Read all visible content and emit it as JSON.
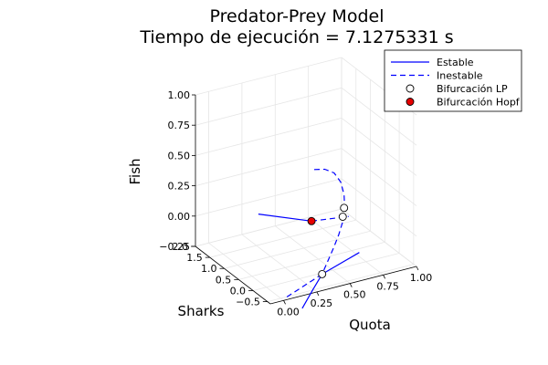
{
  "chart_data": {
    "type": "line3d",
    "title_lines": [
      "Predator-Prey Model",
      "Tiempo de ejecución = 7.1275331 s"
    ],
    "xlabel": "Quota",
    "ylabel": "Sharks",
    "zlabel": "Fish",
    "xlim": [
      -0.1,
      1.0
    ],
    "ylim": [
      -0.6,
      2.0
    ],
    "zlim": [
      -0.25,
      1.0
    ],
    "xticks": [
      "0.00",
      "0.25",
      "0.50",
      "0.75",
      "1.00"
    ],
    "xtick_values": [
      0.0,
      0.25,
      0.5,
      0.75,
      1.0
    ],
    "yticks": [
      "−0.5",
      "0.0",
      "0.5",
      "1.0",
      "1.5",
      "2.0"
    ],
    "ytick_values": [
      -0.5,
      0.0,
      0.5,
      1.0,
      1.5,
      2.0
    ],
    "zticks": [
      "−0.25",
      "0.00",
      "0.25",
      "0.50",
      "0.75",
      "1.00"
    ],
    "ztick_values": [
      -0.25,
      0.0,
      0.25,
      0.5,
      0.75,
      1.0
    ],
    "grid": true,
    "legend_position": "top-right",
    "legend": [
      {
        "label": "Estable",
        "kind": "line",
        "dash": false,
        "color": "#0000ff"
      },
      {
        "label": "Inestable",
        "kind": "line",
        "dash": true,
        "color": "#0000ff"
      },
      {
        "label": "Bifurcación LP",
        "kind": "marker",
        "color": "#ffffff"
      },
      {
        "label": "Bifurcación Hopf",
        "kind": "marker",
        "color": "#e60000"
      }
    ],
    "series": [
      {
        "name": "Estable",
        "dash": false,
        "color": "#0000ff",
        "points": [
          [
            -0.06,
            0.0,
            0.37
          ],
          [
            0.34,
            0.0,
            0.2
          ]
        ]
      },
      {
        "name": "Inestable",
        "dash": true,
        "color": "#0000ff",
        "points": [
          [
            0.34,
            0.0,
            0.2
          ],
          [
            0.62,
            0.0,
            0.16
          ]
        ]
      },
      {
        "name": "Inestable",
        "dash": true,
        "color": "#0000ff",
        "points": [
          [
            0.36,
            0.0,
            0.62
          ],
          [
            0.44,
            0.0,
            0.6
          ],
          [
            0.51,
            0.0,
            0.55
          ],
          [
            0.56,
            0.0,
            0.46
          ],
          [
            0.585,
            0.0,
            0.35
          ],
          [
            0.59,
            0.0,
            0.24
          ],
          [
            0.575,
            0.0,
            0.13
          ],
          [
            0.545,
            0.0,
            0.03
          ],
          [
            0.505,
            0.0,
            -0.07
          ],
          [
            0.46,
            0.0,
            -0.17
          ],
          [
            0.42,
            0.0,
            -0.26
          ]
        ]
      },
      {
        "name": "Estable",
        "dash": false,
        "color": "#0000ff",
        "points": [
          [
            0.42,
            0.0,
            -0.26
          ],
          [
            0.7,
            0.0,
            -0.16
          ]
        ]
      },
      {
        "name": "Inestable",
        "dash": true,
        "color": "#0000ff",
        "points": [
          [
            0.42,
            0.0,
            -0.26
          ],
          [
            0.14,
            0.0,
            -0.38
          ]
        ]
      },
      {
        "name": "Estable",
        "dash": false,
        "color": "#0000ff",
        "points": [
          [
            0.42,
            0.0,
            -0.26
          ],
          [
            0.35,
            0.0,
            -0.37
          ],
          [
            0.27,
            0.0,
            -0.5
          ]
        ]
      }
    ],
    "markers": [
      {
        "name": "Bifurcación LP",
        "color": "#ffffff",
        "point": [
          0.585,
          0.0,
          0.24
        ]
      },
      {
        "name": "Bifurcación LP",
        "color": "#ffffff",
        "point": [
          0.575,
          0.0,
          0.17
        ]
      },
      {
        "name": "Bifurcación LP",
        "color": "#ffffff",
        "point": [
          0.42,
          0.0,
          -0.26
        ]
      },
      {
        "name": "Bifurcación Hopf",
        "color": "#e60000",
        "point": [
          0.34,
          0.0,
          0.2
        ]
      }
    ]
  }
}
